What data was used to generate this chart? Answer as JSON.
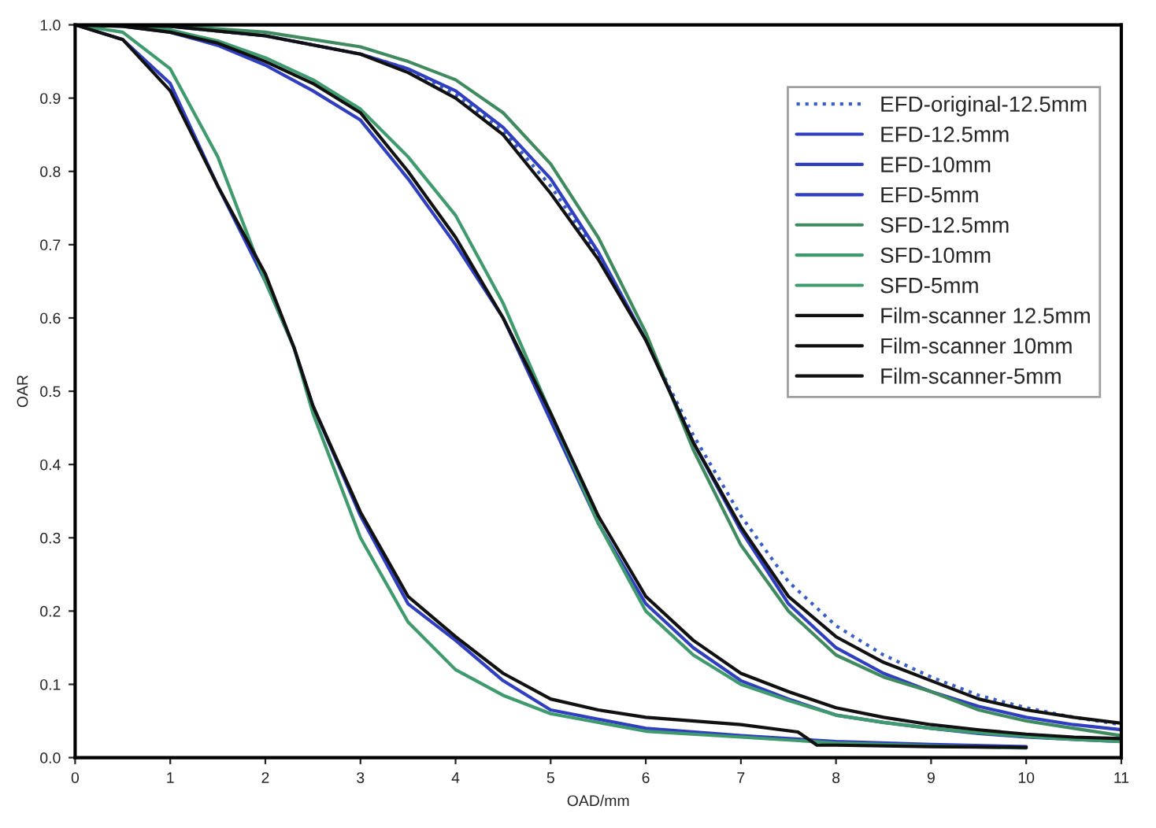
{
  "chart_data": {
    "type": "line",
    "xlabel": "OAD/mm",
    "ylabel": "OAR",
    "xlim": [
      0,
      11
    ],
    "ylim": [
      0,
      1.0
    ],
    "xticks": [
      0,
      1,
      2,
      3,
      4,
      5,
      6,
      7,
      8,
      9,
      10,
      11
    ],
    "yticks": [
      {
        "value": 0,
        "label": "0.0"
      },
      0.1,
      0.2,
      0.3,
      0.4,
      0.5,
      0.6,
      0.7,
      0.8,
      0.9,
      {
        "value": 1.0,
        "label": "1.0"
      }
    ],
    "grid": false,
    "legend": "top right",
    "marker": "none",
    "series": [
      {
        "name": "EFD-original-12.5mm",
        "color": "#3a5fc8",
        "line_style": "dotted",
        "x": [
          0,
          1,
          2,
          3,
          3.5,
          4,
          4.5,
          5,
          5.5,
          6,
          6.5,
          7,
          7.5,
          8,
          8.5,
          9,
          9.5,
          10,
          10.5,
          11
        ],
        "values": [
          1.0,
          0.998,
          0.985,
          0.96,
          0.94,
          0.905,
          0.855,
          0.78,
          0.685,
          0.57,
          0.44,
          0.33,
          0.24,
          0.18,
          0.14,
          0.11,
          0.085,
          0.068,
          0.055,
          0.045
        ]
      },
      {
        "name": "EFD-12.5mm",
        "color": "#2f3fc0",
        "line_style": "solid",
        "x": [
          0,
          1,
          2,
          3,
          3.5,
          4,
          4.5,
          5,
          5.5,
          6,
          6.5,
          7,
          7.5,
          8,
          8.5,
          9,
          9.5,
          10,
          10.5,
          11
        ],
        "values": [
          1.0,
          0.998,
          0.985,
          0.96,
          0.94,
          0.91,
          0.86,
          0.79,
          0.69,
          0.57,
          0.43,
          0.31,
          0.21,
          0.15,
          0.115,
          0.09,
          0.07,
          0.055,
          0.045,
          0.038
        ]
      },
      {
        "name": "EFD-10mm",
        "color": "#2f3fc0",
        "line_style": "solid",
        "x": [
          0,
          0.5,
          1,
          1.5,
          2,
          2.5,
          3,
          3.5,
          4,
          4.5,
          5,
          5.5,
          6,
          6.5,
          7,
          7.5,
          8,
          8.5,
          9,
          9.5,
          10,
          10.5,
          11
        ],
        "values": [
          1.0,
          0.998,
          0.99,
          0.972,
          0.945,
          0.91,
          0.87,
          0.79,
          0.7,
          0.6,
          0.46,
          0.32,
          0.21,
          0.15,
          0.105,
          0.08,
          0.058,
          0.048,
          0.04,
          0.033,
          0.028,
          0.025,
          0.022
        ]
      },
      {
        "name": "EFD-5mm",
        "color": "#2f3fc0",
        "line_style": "solid",
        "x": [
          0,
          0.5,
          1,
          1.5,
          2,
          2.3,
          2.5,
          3,
          3.5,
          4,
          4.5,
          5,
          6,
          7,
          8,
          9,
          10
        ],
        "values": [
          1.0,
          0.98,
          0.92,
          0.78,
          0.65,
          0.56,
          0.48,
          0.33,
          0.21,
          0.16,
          0.105,
          0.065,
          0.04,
          0.03,
          0.022,
          0.018,
          0.015
        ]
      },
      {
        "name": "SFD-12.5mm",
        "color": "#3f8a5e",
        "line_style": "solid",
        "x": [
          0,
          1,
          2,
          3,
          3.5,
          4,
          4.5,
          5,
          5.5,
          6,
          6.5,
          7,
          7.5,
          8,
          8.5,
          9,
          9.5,
          10,
          10.5,
          11
        ],
        "values": [
          1.0,
          0.999,
          0.99,
          0.97,
          0.95,
          0.925,
          0.88,
          0.81,
          0.71,
          0.58,
          0.42,
          0.29,
          0.2,
          0.14,
          0.11,
          0.09,
          0.065,
          0.05,
          0.04,
          0.03
        ]
      },
      {
        "name": "SFD-10mm",
        "color": "#3f9a6e",
        "line_style": "solid",
        "x": [
          0,
          0.5,
          1,
          1.5,
          2,
          2.5,
          3,
          3.5,
          4,
          4.5,
          5,
          5.5,
          6,
          6.5,
          7,
          7.5,
          8,
          8.5,
          9,
          9.5,
          10,
          10.5,
          11
        ],
        "values": [
          1.0,
          0.999,
          0.993,
          0.978,
          0.955,
          0.925,
          0.885,
          0.82,
          0.74,
          0.62,
          0.47,
          0.32,
          0.2,
          0.14,
          0.1,
          0.078,
          0.058,
          0.048,
          0.04,
          0.034,
          0.029,
          0.025,
          0.022
        ]
      },
      {
        "name": "SFD-5mm",
        "color": "#3f9a6e",
        "line_style": "solid",
        "x": [
          0,
          0.5,
          1,
          1.5,
          2,
          2.3,
          2.5,
          3,
          3.5,
          4,
          4.5,
          5,
          6,
          7,
          8,
          9,
          10
        ],
        "values": [
          1.0,
          0.99,
          0.94,
          0.82,
          0.65,
          0.56,
          0.47,
          0.3,
          0.185,
          0.12,
          0.085,
          0.06,
          0.036,
          0.028,
          0.02,
          0.016,
          0.013
        ]
      },
      {
        "name": "Film-scanner 12.5mm",
        "color": "#111111",
        "line_style": "solid",
        "x": [
          0,
          1,
          2,
          3,
          3.5,
          4,
          4.5,
          5,
          5.5,
          6,
          6.5,
          7,
          7.5,
          8,
          8.5,
          9,
          9.5,
          10,
          10.5,
          11
        ],
        "values": [
          1.0,
          0.998,
          0.985,
          0.96,
          0.935,
          0.9,
          0.85,
          0.77,
          0.68,
          0.57,
          0.43,
          0.315,
          0.22,
          0.165,
          0.13,
          0.105,
          0.08,
          0.065,
          0.055,
          0.047
        ]
      },
      {
        "name": "Film-scanner 10mm",
        "color": "#111111",
        "line_style": "solid",
        "x": [
          0,
          0.5,
          1,
          1.5,
          2,
          2.5,
          3,
          3.5,
          4,
          4.5,
          5,
          5.5,
          6,
          6.5,
          7,
          7.5,
          8,
          8.5,
          9,
          9.5,
          10,
          10.5,
          11
        ],
        "values": [
          1.0,
          0.998,
          0.99,
          0.975,
          0.95,
          0.92,
          0.88,
          0.8,
          0.71,
          0.6,
          0.47,
          0.33,
          0.22,
          0.16,
          0.115,
          0.09,
          0.068,
          0.055,
          0.045,
          0.038,
          0.032,
          0.028,
          0.026
        ]
      },
      {
        "name": "Film-scanner-5mm",
        "color": "#111111",
        "line_style": "solid",
        "x": [
          0,
          0.5,
          1,
          1.5,
          2,
          2.3,
          2.5,
          3,
          3.5,
          4,
          4.5,
          5,
          5.5,
          6,
          7,
          7.6,
          7.8,
          8,
          9,
          10
        ],
        "values": [
          1.0,
          0.98,
          0.91,
          0.78,
          0.66,
          0.56,
          0.48,
          0.335,
          0.22,
          0.165,
          0.115,
          0.08,
          0.065,
          0.055,
          0.045,
          0.035,
          0.017,
          0.017,
          0.015,
          0.014
        ]
      }
    ]
  }
}
